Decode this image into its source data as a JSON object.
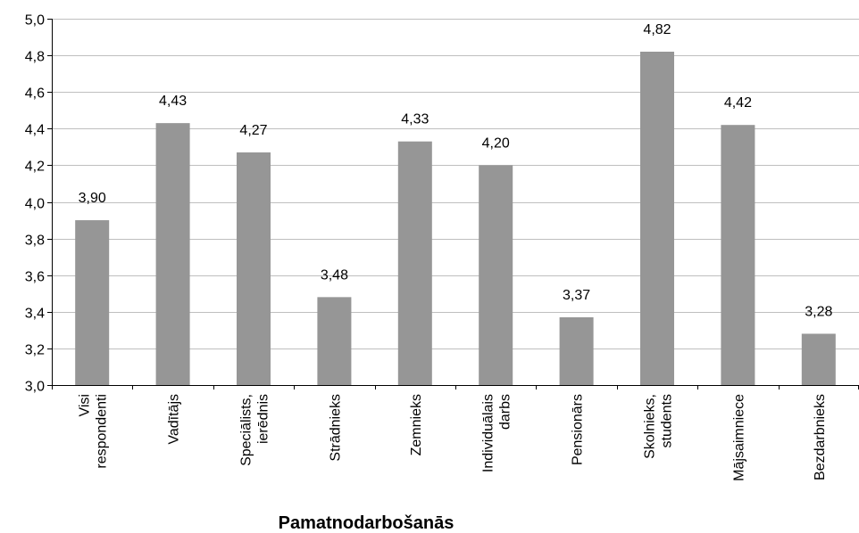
{
  "chart_data": {
    "type": "bar",
    "title": "",
    "xlabel": "Pamatnodarbošanās",
    "ylabel": "",
    "ylim": [
      3.0,
      5.0
    ],
    "ytick_step": 0.2,
    "yticks": [
      "3,0",
      "3,2",
      "3,4",
      "3,6",
      "3,8",
      "4,0",
      "4,2",
      "4,4",
      "4,6",
      "4,8",
      "5,0"
    ],
    "grid": true,
    "legend": "none",
    "bar_color": "#969696",
    "categories": [
      [
        "Visi",
        "respondenti"
      ],
      [
        "Vadītājs"
      ],
      [
        "Speciālists,",
        "ierēdnis"
      ],
      [
        "Strādnieks"
      ],
      [
        "Zemnieks"
      ],
      [
        "Individuālais",
        "darbs"
      ],
      [
        "Pensionārs"
      ],
      [
        "Skolnieks,",
        "students"
      ],
      [
        "Mājsaimniece"
      ],
      [
        "Bezdarbnieks"
      ]
    ],
    "values": [
      3.9,
      4.43,
      4.27,
      3.48,
      4.33,
      4.2,
      3.37,
      4.82,
      4.42,
      3.28
    ],
    "data_labels": [
      "3,90",
      "4,43",
      "4,27",
      "3,48",
      "4,33",
      "4,20",
      "3,37",
      "4,82",
      "4,42",
      "3,28"
    ]
  }
}
